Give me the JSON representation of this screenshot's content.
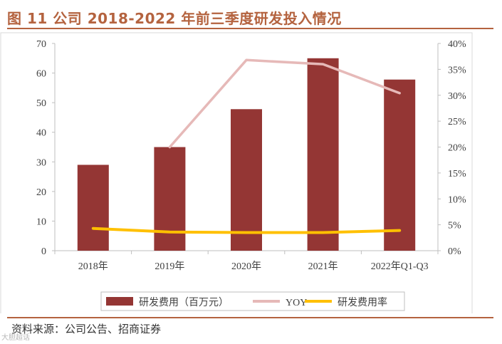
{
  "header": {
    "title": "图 11 公司 2018-2022 年前三季度研发投入情况"
  },
  "footer": {
    "source": "资料来源：公司公告、招商证券",
    "watermark": "大胆超话"
  },
  "colors": {
    "bar": "#943634",
    "yoy": "#e6b9b8",
    "rate": "#ffc000",
    "title": "#b4633f"
  },
  "chart_data": {
    "type": "bar",
    "title": "",
    "categories": [
      "2018年",
      "2019年",
      "2020年",
      "2021年",
      "2022年Q1-Q3"
    ],
    "series": [
      {
        "name": "研发费用（百万元）",
        "type": "bar",
        "axis": "left",
        "values": [
          29,
          35,
          47.8,
          65,
          57.8
        ]
      },
      {
        "name": "YOY",
        "type": "line",
        "axis": "right",
        "values": [
          null,
          0.2,
          0.368,
          0.36,
          0.304
        ]
      },
      {
        "name": "研发费用率",
        "type": "line",
        "axis": "right",
        "values": [
          0.043,
          0.036,
          0.035,
          0.035,
          0.039
        ]
      }
    ],
    "yaxis_left": {
      "min": 0,
      "max": 70,
      "ticks": [
        "0",
        "10",
        "20",
        "30",
        "40",
        "50",
        "60",
        "70"
      ]
    },
    "yaxis_right": {
      "min": 0,
      "max": 0.4,
      "ticks": [
        "0%",
        "5%",
        "10%",
        "15%",
        "20%",
        "25%",
        "30%",
        "35%",
        "40%"
      ]
    },
    "legend": [
      "研发费用（百万元）",
      "YOY",
      "研发费用率"
    ],
    "legend_position": "bottom",
    "grid": false
  }
}
